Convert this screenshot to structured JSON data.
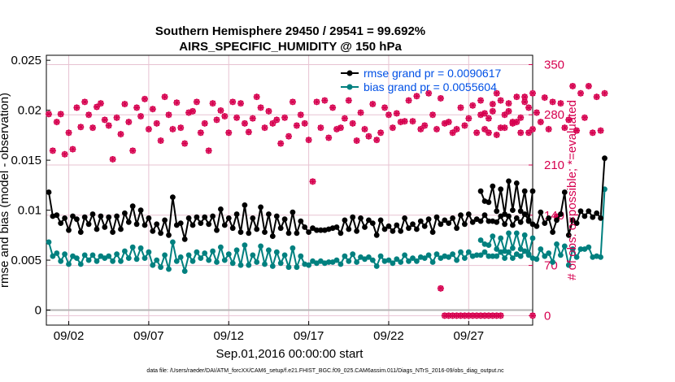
{
  "chart_data": {
    "type": "line",
    "title": "Southern Hemisphere 29450 / 29541 = 99.692%",
    "subtitle": "AIRS_SPECIFIC_HUMIDITY @ 150 hPa",
    "xlabel": "Sep.01,2016 00:00:00 start",
    "ylabel_left": "rmse and bias (model - observation)",
    "ylabel_right": "# of obs: o=possible; *=evaluated",
    "footnote": "data file: /Users/raeder/DAI/ATM_forcXX/CAM6_setup/f.e21.FHIST_BGC.f09_025.CAM6assim.011/Diags_NTrS_2016-09/obs_diag_output.nc",
    "xlim": [
      0.6,
      31.0
    ],
    "ylim_left": [
      -0.0015,
      0.0255
    ],
    "ylim_right": [
      -13.2,
      363
    ],
    "x_ticks": [
      2,
      7,
      12,
      17,
      22,
      27
    ],
    "x_tick_labels": [
      "09/02",
      "09/07",
      "09/12",
      "09/17",
      "09/22",
      "09/27"
    ],
    "left_ticks": [
      0,
      0.005,
      0.01,
      0.015,
      0.02,
      0.025
    ],
    "left_tick_labels": [
      "0",
      "0.005",
      "0.01",
      "0.015",
      "0.02",
      "0.025"
    ],
    "right_ticks": [
      0,
      70,
      140,
      210,
      280,
      350
    ],
    "right_tick_labels": [
      "0",
      "70",
      "140",
      "210",
      "280",
      "350"
    ],
    "colors": {
      "rmse": "#000000",
      "bias": "#00807f",
      "obs": "#d6004f",
      "legend_text": "#0050e6",
      "grid": "#e7c3d2",
      "zero_line": "#b3b3b3"
    },
    "legend": [
      {
        "name": "rmse",
        "label": "rmse grand pr = 0.0090617"
      },
      {
        "name": "bias",
        "label": "bias grand pr = 0.0055604"
      }
    ],
    "start_day": 0.75,
    "step_day": 0.25,
    "series": [
      {
        "name": "rmse",
        "axis": "left",
        "segments": [
          [
            0.0118,
            0.0094,
            0.0095,
            0.0087,
            0.0092,
            0.008,
            0.0094,
            0.0091,
            0.0078,
            0.0093,
            0.0086,
            0.0096,
            0.0081,
            0.0094,
            0.0083,
            0.0093,
            0.0078,
            0.0094,
            0.0081,
            0.0097,
            0.0088,
            0.0104,
            0.0086,
            0.01,
            0.0085,
            0.0092,
            0.0079,
            0.0086,
            0.0077,
            0.009,
            0.0075,
            0.0113,
            0.0085,
            0.0087,
            0.0071,
            0.0092,
            0.0085,
            0.0093,
            0.0087,
            0.0093,
            0.0086,
            0.0094,
            0.008,
            0.0101,
            0.0085,
            0.0092,
            0.0082,
            0.0096,
            0.0078,
            0.0105,
            0.0077,
            0.0092,
            0.0081,
            0.0103,
            0.0078,
            0.0096,
            0.0074,
            0.0094,
            0.0082,
            0.0091,
            0.0077,
            0.0098,
            0.0077,
            0.0089,
            0.0083,
            0.0078,
            0.0082,
            0.008,
            0.008,
            0.008,
            0.0081,
            0.0082,
            0.0083,
            0.0077,
            0.009,
            0.0081,
            0.0093,
            0.0079,
            0.0092,
            0.0083,
            0.009,
            0.0087,
            0.0075,
            0.009,
            0.0081,
            0.0084,
            0.0079,
            0.0085,
            0.0079,
            0.0092,
            0.0082,
            0.0086,
            0.0081,
            0.0089,
            0.0084,
            0.0091,
            0.0078,
            0.0093,
            0.0086,
            0.009,
            0.0087,
            0.0092,
            0.0082,
            0.0095,
            0.0086,
            0.0096,
            0.0088,
            0.0091,
            0.0089,
            0.0095,
            0.0089,
            0.0089,
            0.0088,
            0.0094,
            0.0086,
            0.0094,
            0.0085,
            0.0092,
            0.0088,
            0.0096,
            0.009,
            0.0086,
            0.0084,
            0.0098,
            0.0087,
            0.0092,
            0.0078,
            0.009,
            0.0096,
            0.0118,
            0.0075,
            0.009,
            0.0087,
            0.0099,
            0.0094,
            0.0099,
            0.0093,
            0.0097,
            0.0092,
            0.0152
          ],
          [
            0.0119,
            0.0109,
            0.0108,
            0.0124,
            0.0099,
            0.0121,
            0.0096,
            0.0129,
            0.01,
            0.0127,
            0.0099,
            0.0119,
            0.0089,
            0.0119
          ]
        ],
        "segment_starts": [
          0.75,
          27.75
        ]
      },
      {
        "name": "bias",
        "axis": "left",
        "segments": [
          [
            0.0068,
            0.0054,
            0.0057,
            0.0049,
            0.0056,
            0.0046,
            0.0054,
            0.0052,
            0.0046,
            0.0055,
            0.005,
            0.0055,
            0.0049,
            0.0054,
            0.0052,
            0.0054,
            0.0049,
            0.0056,
            0.0049,
            0.0059,
            0.0052,
            0.0063,
            0.0051,
            0.0062,
            0.0052,
            0.0058,
            0.0045,
            0.005,
            0.0043,
            0.0055,
            0.0041,
            0.0068,
            0.0049,
            0.0053,
            0.0039,
            0.0055,
            0.0049,
            0.0058,
            0.0052,
            0.0057,
            0.005,
            0.0059,
            0.0048,
            0.0063,
            0.005,
            0.0056,
            0.0047,
            0.006,
            0.0045,
            0.0065,
            0.0045,
            0.0055,
            0.0048,
            0.0064,
            0.0046,
            0.006,
            0.0044,
            0.0058,
            0.0047,
            0.0055,
            0.0043,
            0.0062,
            0.0043,
            0.0054,
            0.0046,
            0.0045,
            0.0049,
            0.0047,
            0.0049,
            0.0047,
            0.0048,
            0.0048,
            0.005,
            0.0046,
            0.0054,
            0.0049,
            0.0056,
            0.0048,
            0.0053,
            0.0051,
            0.0053,
            0.005,
            0.0044,
            0.0054,
            0.0049,
            0.005,
            0.0047,
            0.0051,
            0.0048,
            0.0055,
            0.0049,
            0.0052,
            0.0049,
            0.0053,
            0.0052,
            0.0055,
            0.0048,
            0.0056,
            0.0052,
            0.0054,
            0.0053,
            0.0056,
            0.005,
            0.0058,
            0.0052,
            0.0058,
            0.0054,
            0.0055,
            0.0055,
            0.0058,
            0.0054,
            0.0054,
            0.0054,
            0.0058,
            0.0052,
            0.0058,
            0.0052,
            0.0056,
            0.0054,
            0.0059,
            0.0055,
            0.0052,
            0.0051,
            0.0061,
            0.0054,
            0.0057,
            0.0048,
            0.0066,
            0.0055,
            0.0064,
            0.0045,
            0.0061,
            0.0053,
            0.0061,
            0.0061,
            0.0063,
            0.0053,
            0.0054,
            0.0053,
            0.0121
          ],
          [
            0.007,
            0.0066,
            0.0065,
            0.0074,
            0.0061,
            0.0072,
            0.0059,
            0.0077,
            0.0062,
            0.0077,
            0.0061,
            0.0075,
            0.0056,
            0.0072
          ]
        ],
        "segment_starts": [
          0.75,
          27.75
        ]
      }
    ],
    "obs_counts": {
      "axis": "right",
      "note": "possible (o) and evaluated (*) counts coincide; plotted as one marker series",
      "values": [
        281,
        230,
        270,
        281,
        225,
        255,
        232,
        290,
        263,
        298,
        280,
        262,
        291,
        296,
        273,
        265,
        218,
        276,
        253,
        295,
        270,
        230,
        290,
        278,
        302,
        260,
        288,
        268,
        244,
        305,
        280,
        260,
        297,
        262,
        240,
        283,
        285,
        298,
        255,
        268,
        230,
        296,
        273,
        286,
        278,
        255,
        298,
        276,
        296,
        268,
        256,
        275,
        305,
        290,
        262,
        285,
        268,
        273,
        240,
        276,
        250,
        298,
        265,
        280,
        268,
        245,
        187,
        298,
        262,
        300,
        248,
        290,
        260,
        262,
        275,
        300,
        268,
        244,
        283,
        260,
        250,
        295,
        245,
        255,
        290,
        280,
        262,
        282,
        270,
        271,
        300,
        271,
        306,
        260,
        265,
        310,
        280,
        260,
        303,
        268,
        270,
        255,
        260,
        290,
        265,
        275,
        293,
        255,
        280,
        260,
        275,
        285,
        310,
        262,
        280,
        296,
        268,
        270,
        255,
        298,
        290,
        260,
        283,
        270,
        304,
        260,
        298,
        138,
        296,
        262,
        273,
        320,
        258,
        310,
        276,
        320,
        255,
        305,
        258,
        310
      ],
      "zero_values": [
        0,
        0,
        0,
        0,
        0,
        0,
        0,
        0,
        0,
        0,
        0,
        0,
        0,
        0,
        0
      ],
      "zero_start": 25.5,
      "outlier": {
        "x": 25.25,
        "value": 38
      },
      "late_values": [
        300,
        282,
        255,
        295,
        252,
        300,
        262,
        285,
        270,
        305,
        276,
        305,
        255,
        310
      ],
      "late_start": 27.75,
      "end_zero": {
        "x": 31.0,
        "value": 0
      }
    }
  }
}
